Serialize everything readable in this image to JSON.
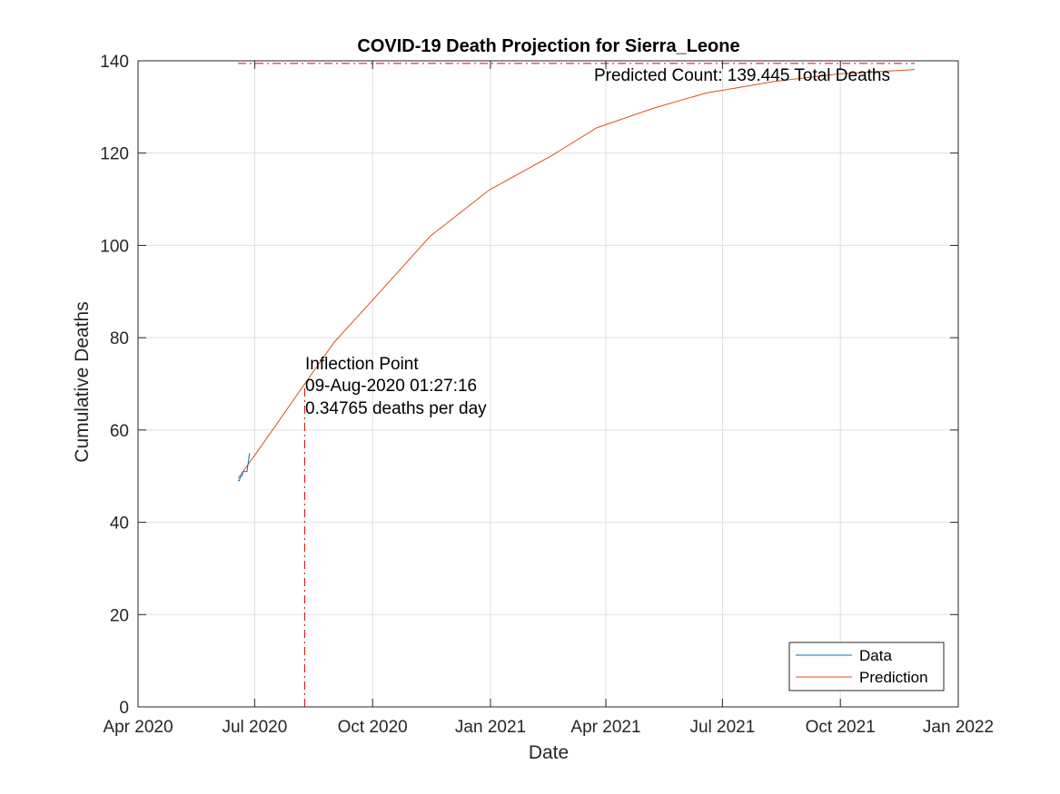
{
  "chart_data": {
    "type": "line",
    "title": "COVID-19 Death Projection for Sierra_Leone",
    "xlabel": "Date",
    "ylabel": "Cumulative Deaths",
    "x_axis_type": "date",
    "xlim": [
      "2020-04-01",
      "2022-01-01"
    ],
    "ylim": [
      0,
      140
    ],
    "x_ticks": [
      {
        "date": "2020-04-01",
        "label": "Apr 2020"
      },
      {
        "date": "2020-07-01",
        "label": "Jul 2020"
      },
      {
        "date": "2020-10-01",
        "label": "Oct 2020"
      },
      {
        "date": "2021-01-01",
        "label": "Jan 2021"
      },
      {
        "date": "2021-04-01",
        "label": "Apr 2021"
      },
      {
        "date": "2021-07-01",
        "label": "Jul 2021"
      },
      {
        "date": "2021-10-01",
        "label": "Oct 2021"
      },
      {
        "date": "2022-01-01",
        "label": "Jan 2022"
      }
    ],
    "y_ticks": [
      "0",
      "20",
      "40",
      "60",
      "80",
      "100",
      "120",
      "140"
    ],
    "grid": true,
    "legend_position": "bottom-right",
    "series": [
      {
        "name": "Data",
        "color": "#0072BD",
        "points": [
          {
            "x": "2020-06-18",
            "y": 49
          },
          {
            "x": "2020-06-19",
            "y": 49
          },
          {
            "x": "2020-06-20",
            "y": 50
          },
          {
            "x": "2020-06-21",
            "y": 50
          },
          {
            "x": "2020-06-22",
            "y": 51
          },
          {
            "x": "2020-06-24",
            "y": 51
          },
          {
            "x": "2020-06-25",
            "y": 51
          },
          {
            "x": "2020-06-26",
            "y": 53
          },
          {
            "x": "2020-06-27",
            "y": 55
          }
        ]
      },
      {
        "name": "Prediction",
        "color": "#D95319",
        "points": [
          {
            "x": "2020-06-18",
            "y": 49.5
          },
          {
            "x": "2020-07-01",
            "y": 54.5
          },
          {
            "x": "2020-07-20",
            "y": 62
          },
          {
            "x": "2020-08-09",
            "y": 70
          },
          {
            "x": "2020-09-01",
            "y": 79
          },
          {
            "x": "2020-10-07",
            "y": 90
          },
          {
            "x": "2020-11-15",
            "y": 102
          },
          {
            "x": "2020-12-31",
            "y": 112
          },
          {
            "x": "2021-02-18",
            "y": 119.5
          },
          {
            "x": "2021-03-25",
            "y": 125.5
          },
          {
            "x": "2021-05-09",
            "y": 129.8
          },
          {
            "x": "2021-06-18",
            "y": 133
          },
          {
            "x": "2021-08-10",
            "y": 135.5
          },
          {
            "x": "2021-10-01",
            "y": 137.2
          },
          {
            "x": "2021-11-28",
            "y": 138.1
          }
        ]
      }
    ],
    "reference_lines": [
      {
        "orientation": "horizontal",
        "y": 139.445,
        "from": "2020-06-18",
        "to": "2021-11-28",
        "color": "#E00000",
        "style": "dash-dot"
      },
      {
        "orientation": "vertical",
        "x": "2020-08-09",
        "from_y": 0,
        "to_y": 70,
        "color": "#E00000",
        "style": "dash-dot"
      }
    ],
    "annotations": {
      "inflection": [
        "Inflection Point",
        "09-Aug-2020 01:27:16",
        "0.34765 deaths per day"
      ],
      "predicted": "Predicted Count: 139.445 Total Deaths"
    }
  }
}
